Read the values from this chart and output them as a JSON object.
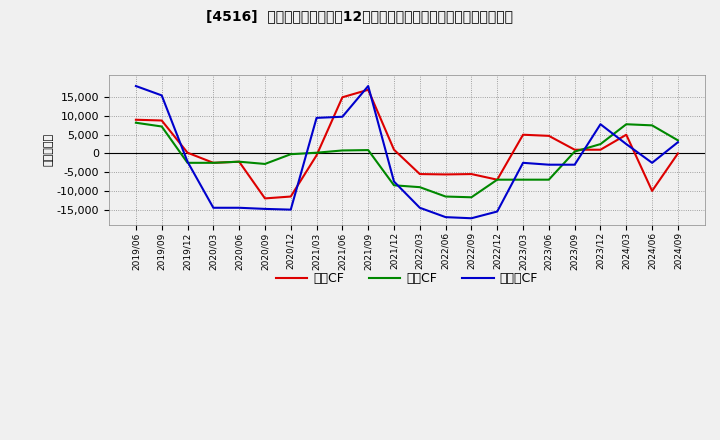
{
  "title": "[4516]  キャッシュフローの12か月移動合計の対前年同期増減額の推移",
  "ylabel": "（百万円）",
  "background_color": "#f0f0f0",
  "plot_background_color": "#f0f0f0",
  "grid_color": "#aaaaaa",
  "x_labels": [
    "2019/06",
    "2019/09",
    "2019/12",
    "2020/03",
    "2020/06",
    "2020/09",
    "2020/12",
    "2021/03",
    "2021/06",
    "2021/09",
    "2021/12",
    "2022/03",
    "2022/06",
    "2022/09",
    "2022/12",
    "2023/03",
    "2023/06",
    "2023/09",
    "2023/12",
    "2024/03",
    "2024/06",
    "2024/09"
  ],
  "operating_cf": [
    9000,
    8800,
    200,
    -2500,
    -2200,
    -12000,
    -11500,
    -500,
    15000,
    17000,
    1000,
    -5500,
    -5600,
    -5500,
    -7000,
    5000,
    4700,
    1000,
    1000,
    5000,
    -10000,
    0
  ],
  "investing_cf": [
    8200,
    7200,
    -2500,
    -2500,
    -2200,
    -2800,
    -200,
    200,
    800,
    900,
    -8500,
    -9000,
    -11500,
    -11700,
    -7000,
    -7000,
    -7000,
    500,
    2500,
    7800,
    7500,
    3500
  ],
  "free_cf": [
    18000,
    15500,
    -2200,
    -14500,
    -14500,
    -14800,
    -15000,
    9500,
    9800,
    18000,
    -7500,
    -14500,
    -17000,
    -17300,
    -15500,
    -2500,
    -3000,
    -3000,
    7800,
    2500,
    -2500,
    3000
  ],
  "operating_color": "#dd0000",
  "investing_color": "#008800",
  "free_color": "#0000cc",
  "ylim": [
    -19000,
    21000
  ],
  "yticks": [
    -15000,
    -10000,
    -5000,
    0,
    5000,
    10000,
    15000
  ]
}
